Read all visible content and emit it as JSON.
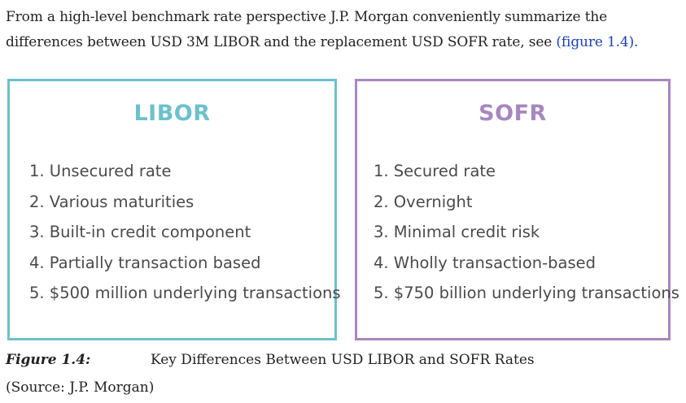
{
  "intro": {
    "text": "From a high-level benchmark rate perspective J.P. Morgan conveniently summarize the differences between USD 3M LIBOR and the replacement USD SOFR rate, see ",
    "link_text": "(figure 1.4).",
    "link_color": "#1a3ec2"
  },
  "libor": {
    "title": "LIBOR",
    "color": "#6cc1cc",
    "items": [
      "1. Unsecured rate",
      "2. Various maturities",
      "3. Built-in credit component",
      "4. Partially transaction based",
      "5. $500 million underlying transactions"
    ]
  },
  "sofr": {
    "title": "SOFR",
    "color": "#a887c0",
    "items": [
      "1. Secured rate",
      "2. Overnight",
      "3. Minimal credit risk",
      "4. Wholly transaction-based",
      "5. $750 billion underlying transactions"
    ]
  },
  "caption": {
    "label": "Figure 1.4:",
    "text": "Key Differences Between USD LIBOR and SOFR Rates"
  },
  "source": "(Source: J.P. Morgan)"
}
